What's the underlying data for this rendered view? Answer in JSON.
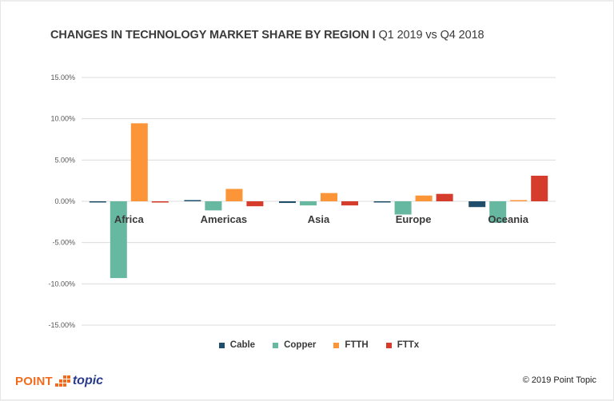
{
  "title": {
    "bold": "CHANGES IN TECHNOLOGY MARKET SHARE BY REGION",
    "separator": "I",
    "light": "Q1 2019 vs Q4 2018"
  },
  "chart_data": {
    "type": "bar",
    "title": "CHANGES IN TECHNOLOGY MARKET SHARE BY REGION I Q1 2019 vs Q4 2018",
    "xlabel": "",
    "ylabel": "",
    "categories": [
      "Africa",
      "Americas",
      "Asia",
      "Europe",
      "Oceania"
    ],
    "series": [
      {
        "name": "Cable",
        "color": "#1f4e6b",
        "values": [
          -0.1,
          0.1,
          -0.2,
          -0.05,
          -0.7
        ]
      },
      {
        "name": "Copper",
        "color": "#66b8a0",
        "values": [
          -9.3,
          -1.1,
          -0.5,
          -1.6,
          -2.6
        ]
      },
      {
        "name": "FTTH",
        "color": "#fb9537",
        "values": [
          9.45,
          1.5,
          1.0,
          0.7,
          0.1
        ]
      },
      {
        "name": "FTTx",
        "color": "#d63c2b",
        "values": [
          -0.15,
          -0.6,
          -0.5,
          0.9,
          3.1
        ]
      }
    ],
    "ylim": [
      -15,
      15
    ],
    "yticks": [
      15,
      10,
      5,
      0,
      -5,
      -10,
      -15
    ],
    "ytick_labels": [
      "15.00%",
      "10.00%",
      "5.00%",
      "0.00%",
      "-5.00%",
      "-10.00%",
      "-15.00%"
    ],
    "grid": true,
    "legend_position": "bottom"
  },
  "footer": {
    "logo_point": "POINT",
    "logo_topic": "topic",
    "copyright": "© 2019 Point Topic"
  }
}
